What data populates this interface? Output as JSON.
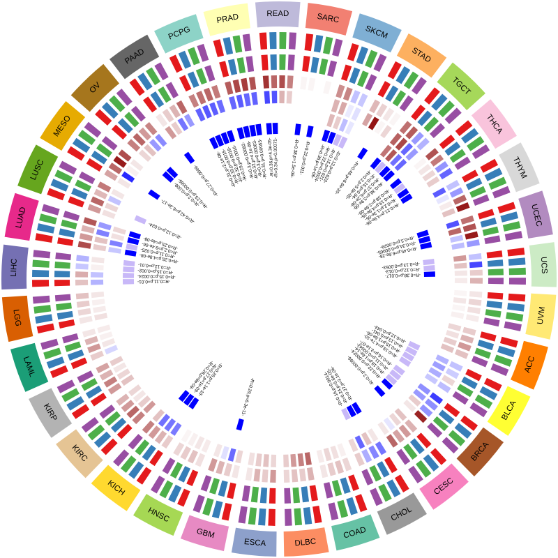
{
  "chart_data": {
    "type": "circos",
    "track_colors": [
      "#e41a1c",
      "#377eb8",
      "#4daf4a",
      "#984ea3"
    ],
    "heat_colors": {
      "negative": "#0000ff",
      "neutral": "#ffffff",
      "positive": "#8b0000"
    },
    "heat_range": [
      -0.5,
      0.5
    ],
    "sectors": [
      {
        "name": "SARC",
        "color": "#f28072",
        "heat": [
          0.02,
          0.02,
          0.0,
          0.02
        ]
      },
      {
        "name": "SKCM",
        "color": "#7fafd4",
        "heat": [
          0.22,
          0.24,
          -0.12,
          -0.11,
          0.15,
          0.17,
          -0.04,
          -0.06,
          0.14,
          0.1,
          -0.13,
          -0.05
        ]
      },
      {
        "name": "STAD",
        "color": "#fdb060",
        "heat": [
          0.14,
          0.09,
          0.05,
          0.02,
          0.18,
          0.46,
          0.02,
          0.08
        ]
      },
      {
        "name": "TGCT",
        "color": "#a6d85a",
        "heat": [
          0.28,
          0.32,
          -0.2,
          -0.15,
          0.31,
          0.36,
          -0.3,
          -0.2,
          0.27,
          0.33,
          -0.28,
          -0.3
        ]
      },
      {
        "name": "THCA",
        "color": "#f9c4dc",
        "heat": [
          0.34,
          0.26,
          -0.21,
          -0.3,
          0.02,
          0.05,
          0.08,
          0.1
        ]
      },
      {
        "name": "THYM",
        "color": "#d8d8d8",
        "heat": [
          -0.12,
          -0.2,
          0.3,
          0.45,
          -0.32,
          -0.05,
          0.04,
          0.12
        ]
      },
      {
        "name": "UCEC",
        "color": "#b28bc0",
        "heat": [
          0.28,
          0.34,
          0.45,
          -0.2,
          -0.34,
          0.3,
          -0.12,
          -0.13
        ]
      },
      {
        "name": "UCS",
        "color": "#ccebc5",
        "heat": [
          -0.12,
          -0.36,
          0.1,
          0.15,
          0.2,
          0.12,
          0.05,
          0.04
        ]
      },
      {
        "name": "UVM",
        "color": "#ffe974",
        "heat": [
          0.05,
          0.08,
          0.06,
          0.04,
          0.02,
          0.05,
          0.02,
          0.03
        ]
      },
      {
        "name": "ACC",
        "color": "#ff7f00",
        "heat": [
          0.1,
          0.15,
          0.2,
          0.12,
          0.08,
          0.06,
          0.1,
          0.12
        ]
      },
      {
        "name": "BLCA",
        "color": "#ffff33",
        "heat": [
          -0.12,
          -0.1,
          0.08,
          -0.13,
          -0.15,
          -0.19,
          -0.16,
          -0.11
        ]
      },
      {
        "name": "BRCA",
        "color": "#a65628",
        "heat": [
          -0.38,
          -0.22,
          -0.21,
          0.43,
          -0.22,
          -0.2,
          0.1,
          0.05
        ]
      },
      {
        "name": "CESC",
        "color": "#f781bf",
        "heat": [
          0.15,
          0.2,
          0.18,
          0.3,
          0.12,
          0.08,
          -0.05,
          0.05
        ]
      },
      {
        "name": "CHOL",
        "color": "#999999",
        "heat": [
          -0.27,
          -0.24,
          -0.16,
          0.1,
          0.05,
          0.12,
          -0.3,
          0.08
        ]
      },
      {
        "name": "COAD",
        "color": "#66c2a5",
        "heat": [
          0.08,
          0.12,
          0.1,
          0.05,
          0.03,
          0.06,
          0.08,
          0.04
        ]
      },
      {
        "name": "DLBC",
        "color": "#fc8d62",
        "heat": [
          0.15,
          0.1,
          0.12,
          0.08,
          0.3,
          0.25,
          0.2,
          0.1
        ]
      },
      {
        "name": "ESCA",
        "color": "#8da0cb",
        "heat": [
          0.2,
          0.1,
          0.15,
          0.05,
          0.08,
          0.12,
          0.1,
          0.06
        ]
      },
      {
        "name": "GBM",
        "color": "#e78ac3",
        "heat": [
          0.05,
          0.1,
          0.15,
          0.2,
          0.08,
          -0.29,
          -0.06,
          0.05
        ]
      },
      {
        "name": "HNSC",
        "color": "#a6d854",
        "heat": [
          0.06,
          0.12,
          0.1,
          0.08,
          0.04,
          0.05,
          0.03,
          0.02
        ]
      },
      {
        "name": "KICH",
        "color": "#ffd92f",
        "heat": [
          0.1,
          0.15,
          0.2,
          0.25,
          -0.26,
          -0.27,
          -0.28,
          0.12
        ]
      },
      {
        "name": "KIRC",
        "color": "#e5c494",
        "heat": [
          0.25,
          0.3,
          0.2,
          0.15,
          0.2,
          0.1,
          0.05,
          0.08
        ]
      },
      {
        "name": "KIRP",
        "color": "#b3b3b3",
        "heat": [
          0.2,
          0.25,
          0.15,
          0.18,
          0.12,
          0.08,
          0.05,
          0.1
        ]
      },
      {
        "name": "LAML",
        "color": "#1b9e77",
        "heat": [
          0.1,
          0.2,
          0.15,
          0.05,
          -0.08,
          0.05,
          0.03,
          0.04
        ]
      },
      {
        "name": "LGG",
        "color": "#d95f02",
        "heat": [
          0.05,
          0.08,
          0.1,
          0.12,
          0.06,
          0.04,
          0.03,
          0.05
        ]
      },
      {
        "name": "LIHC",
        "color": "#7570b3",
        "heat": [
          0.12,
          0.16,
          -0.11,
          -0.15,
          -0.15,
          -0.12,
          0.03,
          0.05
        ]
      },
      {
        "name": "LUAD",
        "color": "#e7298a",
        "heat": [
          0.35,
          0.2,
          0.15,
          0.33,
          0.1,
          0.12,
          -0.25,
          -0.2,
          -0.11,
          -0.25,
          0.06,
          0.08
        ]
      },
      {
        "name": "LUSC",
        "color": "#66a61e",
        "heat": [
          0.2,
          0.3,
          0.14,
          0.26,
          0.06,
          0.08,
          -0.12,
          0.05
        ]
      },
      {
        "name": "MESO",
        "color": "#e6ab02",
        "heat": [
          0.18,
          0.3,
          0.45,
          0.35,
          0.05,
          -0.42,
          0.03,
          0.05
        ]
      },
      {
        "name": "OV",
        "color": "#a6761d",
        "heat": [
          0.25,
          0.3,
          0.2,
          0.24,
          0.08,
          0.12,
          -0.2,
          -0.23
        ]
      },
      {
        "name": "PAAD",
        "color": "#666666",
        "heat": [
          0.05,
          0.1,
          0.15,
          0.3,
          0.2,
          0.1,
          -0.27,
          -0.2
        ]
      },
      {
        "name": "PCPG",
        "color": "#8dd3c7",
        "heat": [
          0.25,
          0.28,
          0.3,
          0.26,
          -0.31,
          -0.33,
          -0.32,
          -0.29
        ]
      },
      {
        "name": "PRAD",
        "color": "#ffffb3",
        "heat": [
          0.32,
          0.36,
          0.38,
          0.34,
          -0.3,
          -0.32,
          -0.3,
          -0.31
        ]
      },
      {
        "name": "READ",
        "color": "#bebada",
        "heat": [
          0.4,
          0.3,
          0.35,
          0.25,
          -0.36,
          -0.34,
          0.15,
          0.1
        ]
      }
    ],
    "labels": [
      {
        "text": "R=0.38,p=1.5e-06",
        "sector": "SARC",
        "col": 0
      },
      {
        "text": "R=0.22,p=0.011",
        "sector": "SARC",
        "col": 2
      },
      {
        "text": "R=0.36,p=1e-06",
        "sector": "SKCM",
        "col": 0
      },
      {
        "text": "R=0.22,p=0.0024",
        "sector": "SKCM",
        "col": 1
      },
      {
        "text": "R=0.15,p=0.021",
        "sector": "SKCM",
        "col": 2
      },
      {
        "text": "R=0.13,p=0.023",
        "sector": "SKCM",
        "col": 3
      },
      {
        "text": "R=0.46,p=6.6e-20",
        "sector": "STAD",
        "col": 2
      },
      {
        "text": "R=0.2,p=5.6e-05",
        "sector": "TGCT",
        "col": 0
      },
      {
        "text": "R=0.15,p=0.04",
        "sector": "TGCT",
        "col": 1
      },
      {
        "text": "R=0.37,p=6.2e-08",
        "sector": "TGCT",
        "col": 2
      },
      {
        "text": "R=0.38,p=3.9e-08",
        "sector": "TGCT",
        "col": 3
      },
      {
        "text": "R=0.38,p=2.9e-08",
        "sector": "THCA",
        "col": 0
      },
      {
        "text": "R=0.19,p=4.9e-05",
        "sector": "THCA",
        "col": 1
      },
      {
        "text": "R=0.2,p=1.3e-05",
        "sector": "THCA",
        "col": 2
      },
      {
        "text": "R=0.21,p=4.9e-06",
        "sector": "THCA",
        "col": 3
      },
      {
        "text": "R=0.3,p=0.0029",
        "sector": "UCEC",
        "col": 0
      },
      {
        "text": "R=0.34,p=0.00065",
        "sector": "UCEC",
        "col": 1
      },
      {
        "text": "R=0.45,p=6.6e-28",
        "sector": "UCEC",
        "col": 2
      },
      {
        "text": "R=0.13,p=0.0053",
        "sector": "UCS",
        "col": 0
      },
      {
        "text": "R=0.12,p=0.013",
        "sector": "UCS",
        "col": 1
      },
      {
        "text": "R=0.38,p=0.017",
        "sector": "UCS",
        "col": 2
      },
      {
        "text": "R=0.12,p=0.043",
        "sector": "BLCA",
        "col": 0
      },
      {
        "text": "R=0.13,p=0.041",
        "sector": "BLCA",
        "col": 1
      },
      {
        "text": "R=0.15,p=1.6e-06",
        "sector": "BLCA",
        "col": 2
      },
      {
        "text": "R=0.19,p=4.7e-10",
        "sector": "BLCA",
        "col": 3
      },
      {
        "text": "R=0.16,p=3.1e-07",
        "sector": "BRCA",
        "col": 0
      },
      {
        "text": "R=0.11,p=0.00042",
        "sector": "BRCA",
        "col": 1
      },
      {
        "text": "R=0.18,p=1.6e-14",
        "sector": "BRCA",
        "col": 2
      },
      {
        "text": "R=0.22,p=0.00024",
        "sector": "BRCA",
        "col": 3
      },
      {
        "text": "R=0.2,p=0.00096",
        "sector": "CESC",
        "col": 0
      },
      {
        "text": "R=0.27,p=3.1e-06",
        "sector": "CHOL",
        "col": 0
      },
      {
        "text": "R=0.24,p=5.6e-05",
        "sector": "CHOL",
        "col": 1
      },
      {
        "text": "R=0.16,p=0.0014",
        "sector": "CHOL",
        "col": 2
      },
      {
        "text": "R=0.29,p=6.3e-11",
        "sector": "GBM",
        "col": 1
      },
      {
        "text": "R=0.26,p=1.1e-10",
        "sector": "KICH",
        "col": 0
      },
      {
        "text": "R=0.27,p=1e-09",
        "sector": "KICH",
        "col": 1
      },
      {
        "text": "R=0.28,p=8e-09",
        "sector": "KICH",
        "col": 2
      },
      {
        "text": "R=0.11,p=0.01",
        "sector": "LIHC",
        "col": 0
      },
      {
        "text": "R=0.15,p=0.0024",
        "sector": "LIHC",
        "col": 1
      },
      {
        "text": "R=0.15,p=0.002",
        "sector": "LIHC",
        "col": 2
      },
      {
        "text": "R=0.12,p=0.01",
        "sector": "LIHC",
        "col": 3
      },
      {
        "text": "R=0.25,p=4.8e-08",
        "sector": "LUAD",
        "col": 0
      },
      {
        "text": "R=0.11,p=0.025",
        "sector": "LUAD",
        "col": 1
      },
      {
        "text": "R=0.2,p=9.4e-06",
        "sector": "LUAD",
        "col": 2
      },
      {
        "text": "R=0.25,p=4e-08",
        "sector": "LUAD",
        "col": 3
      },
      {
        "text": "R=0.12,p=0.024",
        "sector": "LUSC",
        "col": 1
      },
      {
        "text": "R=0.42,p=6.3e-17",
        "sector": "MESO",
        "col": 1
      },
      {
        "text": "R=0.2,p=0.008",
        "sector": "OV",
        "col": 0
      },
      {
        "text": "R=0.23,p=0.00065",
        "sector": "OV",
        "col": 1
      },
      {
        "text": "R=0.27,p=0.0049",
        "sector": "PAAD",
        "col": 0
      },
      {
        "text": "R=0.31,p=2.1e-06",
        "sector": "PCPG",
        "col": 0
      },
      {
        "text": "R=0.33,p=0.0015",
        "sector": "PCPG",
        "col": 1
      },
      {
        "text": "R=0.32,p=0.0018",
        "sector": "PCPG",
        "col": 2
      },
      {
        "text": "R=0.29,p=0.0016",
        "sector": "PCPG",
        "col": 3
      },
      {
        "text": "R=0.3,p=0.00082",
        "sector": "PRAD",
        "col": 0
      },
      {
        "text": "R=0.32,p=4.1e-06",
        "sector": "PRAD",
        "col": 1
      },
      {
        "text": "R=0.3,p=0.00063",
        "sector": "PRAD",
        "col": 2
      },
      {
        "text": "R=0.31,p=0.00053",
        "sector": "PRAD",
        "col": 3
      },
      {
        "text": "R=0.36,p=4.3e-05",
        "sector": "READ",
        "col": 0
      },
      {
        "text": "R=0.34,p=0.00071",
        "sector": "READ",
        "col": 1
      }
    ]
  }
}
